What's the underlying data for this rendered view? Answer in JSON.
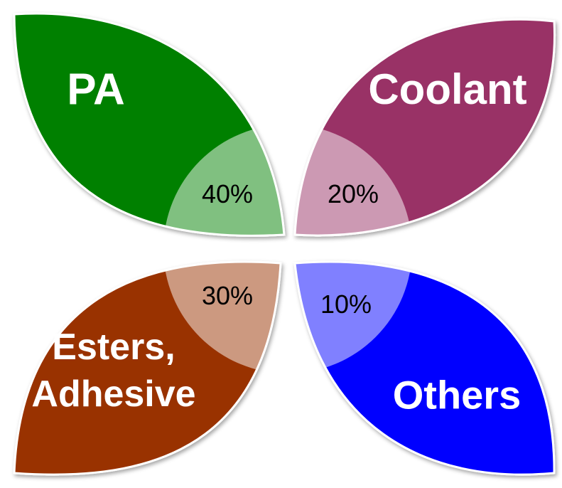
{
  "petals": [
    {
      "label": [
        "PA"
      ],
      "percent": "40%",
      "color": "#008000"
    },
    {
      "label": [
        "Coolant"
      ],
      "percent": "20%",
      "color": "#993366"
    },
    {
      "label": [
        "Esters,",
        "Adhesive"
      ],
      "percent": "30%",
      "color": "#993300"
    },
    {
      "label": [
        "Others"
      ],
      "percent": "10%",
      "color": "#0000ff"
    }
  ]
}
